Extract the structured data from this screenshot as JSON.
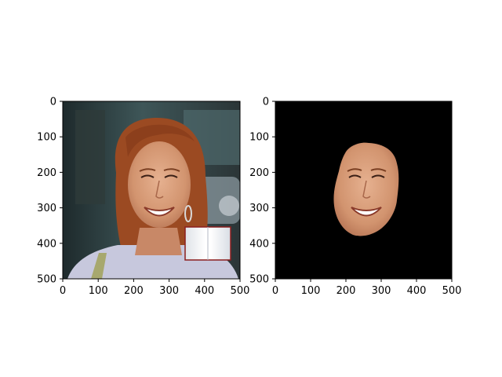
{
  "chart_data": [
    {
      "type": "image",
      "content": "photo of a smiling woman with auburn hair and hoop earring; a small open-book sticker overlaid at lower right",
      "xlim": [
        0,
        500
      ],
      "ylim": [
        500,
        0
      ],
      "xticks": [
        0,
        100,
        200,
        300,
        400,
        500
      ],
      "yticks": [
        0,
        100,
        200,
        300,
        400,
        500
      ],
      "xtick_labels": [
        "0",
        "100",
        "200",
        "300",
        "400",
        "500"
      ],
      "ytick_labels": [
        "0",
        "100",
        "200",
        "300",
        "400",
        "500"
      ]
    },
    {
      "type": "image",
      "content": "same face segmented (face-only mask) on a black background",
      "xlim": [
        0,
        500
      ],
      "ylim": [
        500,
        0
      ],
      "xticks": [
        0,
        100,
        200,
        300,
        400,
        500
      ],
      "yticks": [
        0,
        100,
        200,
        300,
        400,
        500
      ],
      "xtick_labels": [
        "0",
        "100",
        "200",
        "300",
        "400",
        "500"
      ],
      "ytick_labels": [
        "0",
        "100",
        "200",
        "300",
        "400",
        "500"
      ]
    }
  ],
  "colors": {
    "skin": "#d89a78",
    "hair": "#9b4a22",
    "background_mask": "#000000"
  }
}
